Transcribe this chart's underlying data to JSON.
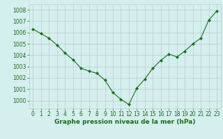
{
  "x": [
    0,
    1,
    2,
    3,
    4,
    5,
    6,
    7,
    8,
    9,
    10,
    11,
    12,
    13,
    14,
    15,
    16,
    17,
    18,
    19,
    20,
    21,
    22,
    23
  ],
  "y": [
    1006.3,
    1005.9,
    1005.5,
    1004.9,
    1004.2,
    1003.6,
    1002.85,
    1002.6,
    1002.4,
    1001.8,
    1000.7,
    1000.1,
    999.65,
    1001.1,
    1001.9,
    1002.85,
    1003.55,
    1004.1,
    1003.85,
    1004.35,
    1005.0,
    1005.5,
    1007.1,
    1007.9
  ],
  "line_color": "#1a6e1a",
  "marker": "D",
  "marker_size": 2.2,
  "bg_color": "#d5eeee",
  "grid_color": "#b8d0c8",
  "xlabel": "Graphe pression niveau de la mer (hPa)",
  "xlabel_color": "#1a6e1a",
  "tick_color": "#1a6e1a",
  "ylim": [
    999.3,
    1008.5
  ],
  "xlim": [
    -0.5,
    23.5
  ],
  "yticks": [
    1000,
    1001,
    1002,
    1003,
    1004,
    1005,
    1006,
    1007,
    1008
  ],
  "xticks": [
    0,
    1,
    2,
    3,
    4,
    5,
    6,
    7,
    8,
    9,
    10,
    11,
    12,
    13,
    14,
    15,
    16,
    17,
    18,
    19,
    20,
    21,
    22,
    23
  ],
  "label_fontsize": 6.5,
  "tick_fontsize": 5.5
}
